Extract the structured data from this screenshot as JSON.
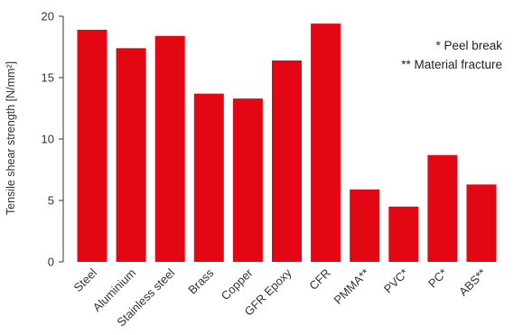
{
  "chart_data": {
    "type": "bar",
    "title": "",
    "xlabel": "",
    "ylabel": "Tensile shear strength [N/mm²]",
    "ylim": [
      0,
      20
    ],
    "yticks": [
      0,
      5,
      10,
      15,
      20
    ],
    "grid": false,
    "legend": "none",
    "bar_color": "#e30613",
    "categories": [
      "Steel",
      "Aluminium",
      "Stainless steel",
      "Brass",
      "Copper",
      "GFR Epoxy",
      "CFR",
      "PMMA**",
      "PVC*",
      "PC*",
      "ABS**"
    ],
    "values": [
      18.9,
      17.4,
      18.4,
      13.7,
      13.3,
      16.4,
      19.4,
      5.9,
      4.5,
      8.7,
      6.3
    ],
    "annotations": [
      "* Peel break",
      "** Material fracture"
    ]
  }
}
